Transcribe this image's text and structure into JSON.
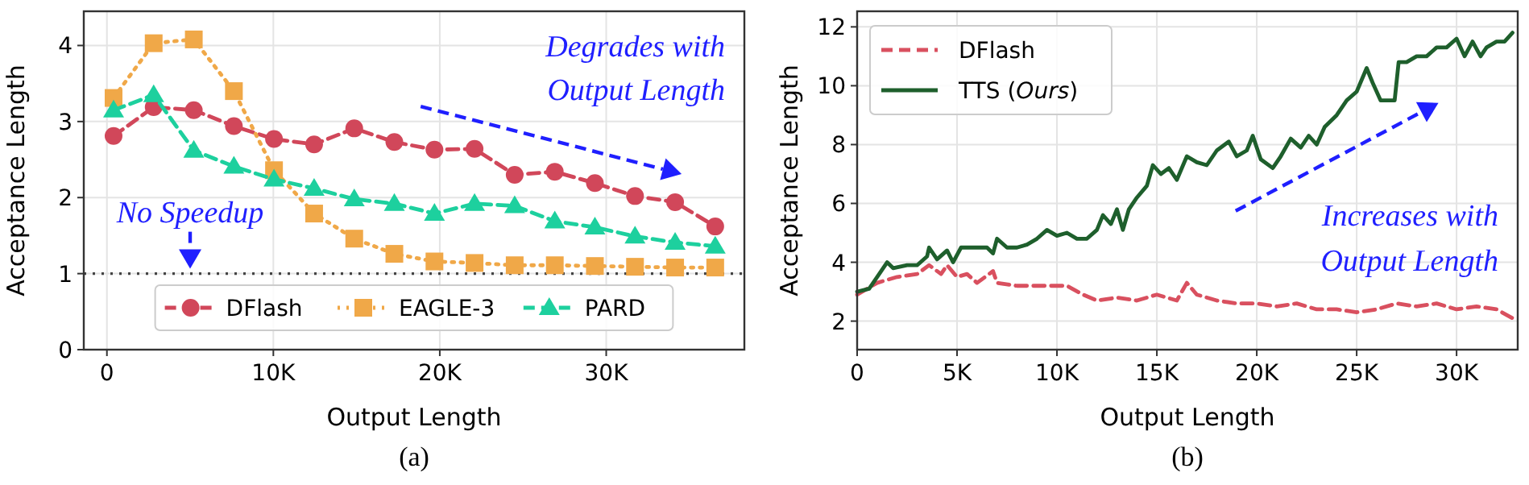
{
  "chart_data": [
    {
      "type": "line",
      "title": "(a)",
      "xlabel": "Output Length",
      "ylabel": "Acceptance Length",
      "x": [
        400,
        2810,
        5220,
        7630,
        10040,
        12450,
        14860,
        17270,
        19680,
        22090,
        24500,
        26910,
        29320,
        31730,
        34140,
        36550
      ],
      "series": [
        {
          "name": "DFlash",
          "color": "#d1475a",
          "marker": "circle",
          "line_style": "dashed",
          "values": [
            2.81,
            3.19,
            3.15,
            2.94,
            2.77,
            2.7,
            2.91,
            2.73,
            2.63,
            2.64,
            2.3,
            2.34,
            2.19,
            2.02,
            1.94,
            1.62
          ]
        },
        {
          "name": "EAGLE-3",
          "color": "#f0a848",
          "marker": "square",
          "line_style": "dotted",
          "values": [
            3.31,
            4.03,
            4.08,
            3.4,
            2.36,
            1.79,
            1.46,
            1.26,
            1.16,
            1.14,
            1.11,
            1.11,
            1.1,
            1.09,
            1.08,
            1.08
          ]
        },
        {
          "name": "PARD",
          "color": "#1dd09e",
          "marker": "triangle",
          "line_style": "dashed",
          "values": [
            3.15,
            3.35,
            2.62,
            2.41,
            2.24,
            2.12,
            1.98,
            1.92,
            1.79,
            1.92,
            1.89,
            1.69,
            1.61,
            1.49,
            1.41,
            1.36
          ]
        }
      ],
      "xlim": [
        -1390,
        38300
      ],
      "xticks": [
        0,
        {
          "value": 10000,
          "label": "10K"
        },
        {
          "value": 20000,
          "label": "20K"
        },
        {
          "value": 30000,
          "label": "30K"
        }
      ],
      "ylim": [
        0,
        4.45
      ],
      "yticks": [
        0,
        1,
        2,
        3,
        4
      ],
      "ref_lines": [
        {
          "axis": "y",
          "value": 1,
          "color": "#444444",
          "line_style": "dotted"
        }
      ],
      "annotations": [
        {
          "text": "No Speedup",
          "x": 5000,
          "y": 1
        },
        "Degrades with Output Length"
      ],
      "grid": true,
      "legend": "bottom"
    },
    {
      "type": "line",
      "title": "(b)",
      "xlabel": "Output Length",
      "ylabel": "Acceptance Length",
      "series": [
        {
          "name": "DFlash",
          "color": "#d9505f",
          "line_style": "dashed",
          "x": [
            0,
            1000,
            2000,
            3000,
            3600,
            4200,
            4500,
            5000,
            5500,
            6000,
            6800,
            7000,
            8000,
            9000,
            10000,
            10500,
            11300,
            12000,
            13000,
            14000,
            15000,
            16000,
            16500,
            17000,
            18000,
            19000,
            20000,
            21000,
            22000,
            23000,
            24000,
            25000,
            26000,
            27000,
            28000,
            29000,
            30000,
            31000,
            32000,
            32800
          ],
          "values": [
            2.9,
            3.3,
            3.5,
            3.6,
            3.9,
            3.6,
            3.9,
            3.5,
            3.6,
            3.3,
            3.7,
            3.3,
            3.2,
            3.2,
            3.2,
            3.2,
            2.9,
            2.7,
            2.8,
            2.7,
            2.9,
            2.7,
            3.3,
            2.9,
            2.7,
            2.6,
            2.6,
            2.5,
            2.6,
            2.4,
            2.4,
            2.3,
            2.4,
            2.6,
            2.5,
            2.6,
            2.4,
            2.5,
            2.4,
            2.1
          ]
        },
        {
          "name": "TTS (Ours)",
          "color": "#1e5f2c",
          "line_style": "solid",
          "x": [
            0,
            600,
            1000,
            1500,
            1800,
            2500,
            3000,
            3500,
            3600,
            4000,
            4500,
            4800,
            5200,
            6000,
            6500,
            6800,
            7000,
            7500,
            8000,
            8500,
            9000,
            9500,
            10000,
            10500,
            11000,
            11500,
            12000,
            12300,
            12700,
            13000,
            13300,
            13600,
            14000,
            14500,
            14800,
            15200,
            15600,
            16000,
            16500,
            17000,
            17500,
            18000,
            18600,
            19000,
            19500,
            19800,
            20200,
            20800,
            21200,
            21700,
            22200,
            22600,
            23000,
            23400,
            24000,
            24500,
            25000,
            25500,
            25800,
            26200,
            26900,
            27100,
            27500,
            28000,
            28500,
            29000,
            29500,
            30000,
            30400,
            30800,
            31200,
            31500,
            32000,
            32400,
            32800
          ],
          "values": [
            3.0,
            3.1,
            3.5,
            4.0,
            3.8,
            3.9,
            3.9,
            4.2,
            4.5,
            4.1,
            4.4,
            4.0,
            4.5,
            4.5,
            4.5,
            4.3,
            4.8,
            4.5,
            4.5,
            4.6,
            4.8,
            5.1,
            4.9,
            5.0,
            4.8,
            4.8,
            5.1,
            5.6,
            5.3,
            5.8,
            5.1,
            5.8,
            6.2,
            6.6,
            7.3,
            7.0,
            7.2,
            6.8,
            7.6,
            7.4,
            7.3,
            7.8,
            8.1,
            7.6,
            7.8,
            8.3,
            7.5,
            7.2,
            7.6,
            8.2,
            7.9,
            8.3,
            8.0,
            8.6,
            9.0,
            9.5,
            9.8,
            10.6,
            10.1,
            9.5,
            9.5,
            10.8,
            10.8,
            11.0,
            11.0,
            11.3,
            11.3,
            11.6,
            11.0,
            11.5,
            11.0,
            11.3,
            11.5,
            11.5,
            11.8
          ]
        }
      ],
      "xlim": [
        0,
        33060
      ],
      "xticks": [
        0,
        {
          "value": 5000,
          "label": "5K"
        },
        {
          "value": 10000,
          "label": "10K"
        },
        {
          "value": 15000,
          "label": "15K"
        },
        {
          "value": 20000,
          "label": "20K"
        },
        {
          "value": 25000,
          "label": "25K"
        },
        {
          "value": 30000,
          "label": "30K"
        }
      ],
      "ylim": [
        1.03,
        12.53
      ],
      "yticks": [
        2,
        4,
        6,
        8,
        10,
        12
      ],
      "annotations": [
        "Increases with Output Length"
      ],
      "grid": true,
      "legend": "top left"
    }
  ]
}
